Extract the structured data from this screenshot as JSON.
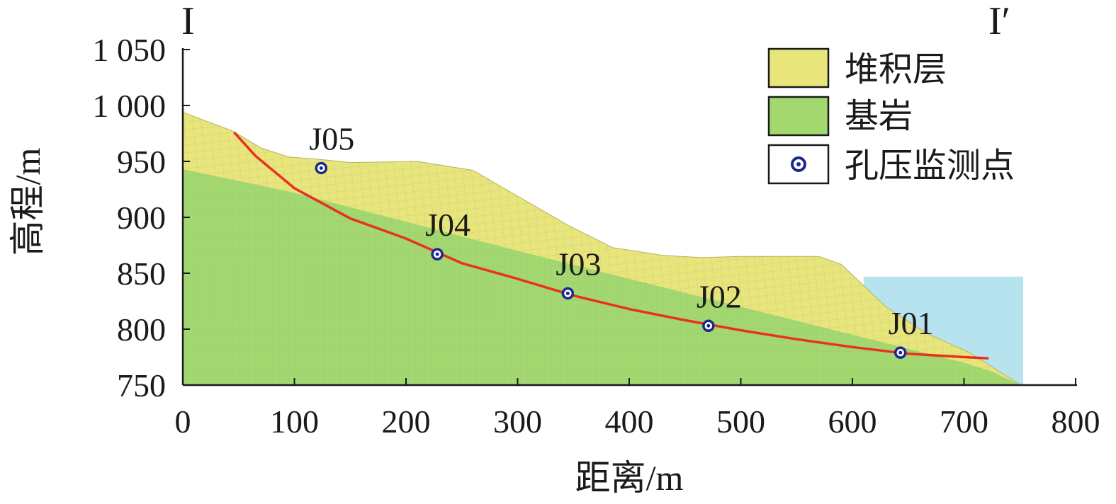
{
  "section": {
    "start_mark": "I",
    "end_mark": "I′"
  },
  "colors": {
    "deposit": "#e8e57a",
    "bedrock": "#a3d86e",
    "water": "#b7e3ee",
    "slip_surface": "#e8321e",
    "marker": "#1d2a8c",
    "mesh": "#8a96b0"
  },
  "chart_data": {
    "type": "cross-section",
    "xlabel": "距离/m",
    "ylabel": "高程/m",
    "xlim": [
      0,
      800
    ],
    "ylim": [
      750,
      1050
    ],
    "x_ticks": [
      {
        "value": 0,
        "label": "0"
      },
      {
        "value": 100,
        "label": "100"
      },
      {
        "value": 200,
        "label": "200"
      },
      {
        "value": 300,
        "label": "300"
      },
      {
        "value": 400,
        "label": "400"
      },
      {
        "value": 500,
        "label": "500"
      },
      {
        "value": 600,
        "label": "600"
      },
      {
        "value": 700,
        "label": "700"
      },
      {
        "value": 800,
        "label": "800"
      }
    ],
    "y_ticks": [
      {
        "value": 750,
        "label": "750"
      },
      {
        "value": 800,
        "label": "800"
      },
      {
        "value": 850,
        "label": "850"
      },
      {
        "value": 900,
        "label": "900"
      },
      {
        "value": 950,
        "label": "950"
      },
      {
        "value": 1000,
        "label": "1 000"
      },
      {
        "value": 1050,
        "label": "1 050"
      }
    ],
    "ground_surface": [
      [
        0,
        994
      ],
      [
        45,
        977
      ],
      [
        70,
        962
      ],
      [
        95,
        954
      ],
      [
        120,
        952
      ],
      [
        150,
        949
      ],
      [
        210,
        950
      ],
      [
        260,
        942
      ],
      [
        300,
        919
      ],
      [
        345,
        893
      ],
      [
        385,
        873
      ],
      [
        430,
        866
      ],
      [
        465,
        864
      ],
      [
        500,
        865
      ],
      [
        570,
        865
      ],
      [
        590,
        858
      ],
      [
        630,
        820
      ],
      [
        665,
        797
      ],
      [
        705,
        779
      ],
      [
        751,
        750
      ]
    ],
    "bedrock_surface": [
      [
        0,
        943
      ],
      [
        100,
        922
      ],
      [
        200,
        896
      ],
      [
        300,
        870
      ],
      [
        400,
        845
      ],
      [
        500,
        820
      ],
      [
        600,
        795
      ],
      [
        700,
        770
      ],
      [
        725,
        762
      ],
      [
        751,
        750
      ]
    ],
    "slip_surface": [
      [
        46,
        976
      ],
      [
        65,
        955
      ],
      [
        100,
        926
      ],
      [
        150,
        899
      ],
      [
        200,
        881
      ],
      [
        250,
        859
      ],
      [
        300,
        845
      ],
      [
        350,
        830
      ],
      [
        400,
        818
      ],
      [
        450,
        808
      ],
      [
        500,
        799
      ],
      [
        550,
        791
      ],
      [
        600,
        784
      ],
      [
        650,
        778
      ],
      [
        700,
        775
      ],
      [
        722,
        774
      ]
    ],
    "water_body": {
      "x_from": 610,
      "x_to": 753,
      "level": 847
    },
    "monitoring_points": [
      {
        "id": "J05",
        "x": 124,
        "y": 944
      },
      {
        "id": "J04",
        "x": 228,
        "y": 867
      },
      {
        "id": "J03",
        "x": 345,
        "y": 832
      },
      {
        "id": "J02",
        "x": 471,
        "y": 803
      },
      {
        "id": "J01",
        "x": 643,
        "y": 779
      }
    ]
  },
  "legend": {
    "items": [
      {
        "key": "deposit",
        "label": "堆积层"
      },
      {
        "key": "bedrock",
        "label": "基岩"
      },
      {
        "key": "marker",
        "label": "孔压监测点"
      }
    ]
  }
}
